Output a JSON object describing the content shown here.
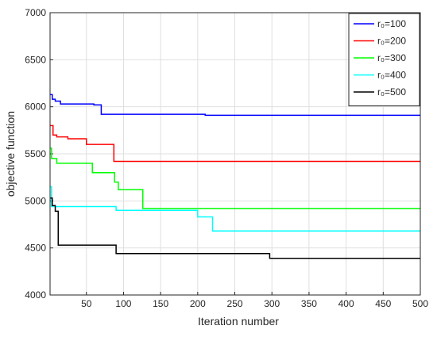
{
  "chart_data": {
    "type": "line",
    "xlabel": "Iteration number",
    "ylabel": "objective function",
    "xlim": [
      1,
      500
    ],
    "xticks": [
      50,
      100,
      150,
      200,
      250,
      300,
      350,
      400,
      450,
      500
    ],
    "ylim": [
      4000,
      7000
    ],
    "yticks": [
      4000,
      4500,
      5000,
      5500,
      6000,
      6500,
      7000
    ],
    "grid": true,
    "legend": "upper right",
    "series": [
      {
        "name": "r₀=100",
        "color": "#0000ff",
        "x": [
          1,
          4,
          4,
          8,
          8,
          15,
          15,
          60,
          60,
          70,
          70,
          210,
          210,
          500
        ],
        "values": [
          6130,
          6130,
          6080,
          6080,
          6060,
          6060,
          6030,
          6030,
          6020,
          6020,
          5920,
          5920,
          5910,
          5910
        ]
      },
      {
        "name": "r₀=200",
        "color": "#ff0000",
        "x": [
          1,
          5,
          5,
          10,
          10,
          25,
          25,
          50,
          50,
          87,
          87,
          500
        ],
        "values": [
          5800,
          5800,
          5700,
          5700,
          5680,
          5680,
          5660,
          5660,
          5600,
          5600,
          5420,
          5420
        ]
      },
      {
        "name": "r₀=300",
        "color": "#00ff00",
        "x": [
          1,
          3,
          3,
          10,
          10,
          58,
          58,
          88,
          88,
          93,
          93,
          126,
          126,
          500
        ],
        "values": [
          5560,
          5560,
          5450,
          5450,
          5400,
          5400,
          5300,
          5300,
          5200,
          5200,
          5120,
          5120,
          4920,
          4920
        ]
      },
      {
        "name": "r₀=400",
        "color": "#00ffff",
        "x": [
          1,
          3,
          3,
          90,
          90,
          200,
          200,
          220,
          220,
          500
        ],
        "values": [
          5150,
          5150,
          4940,
          4940,
          4900,
          4900,
          4830,
          4830,
          4680,
          4680
        ]
      },
      {
        "name": "r₀=500",
        "color": "#000000",
        "x": [
          1,
          4,
          4,
          8,
          8,
          12,
          12,
          90,
          90,
          297,
          297,
          500
        ],
        "values": [
          5030,
          5030,
          4950,
          4950,
          4890,
          4890,
          4530,
          4530,
          4440,
          4440,
          4390,
          4390
        ]
      }
    ]
  }
}
